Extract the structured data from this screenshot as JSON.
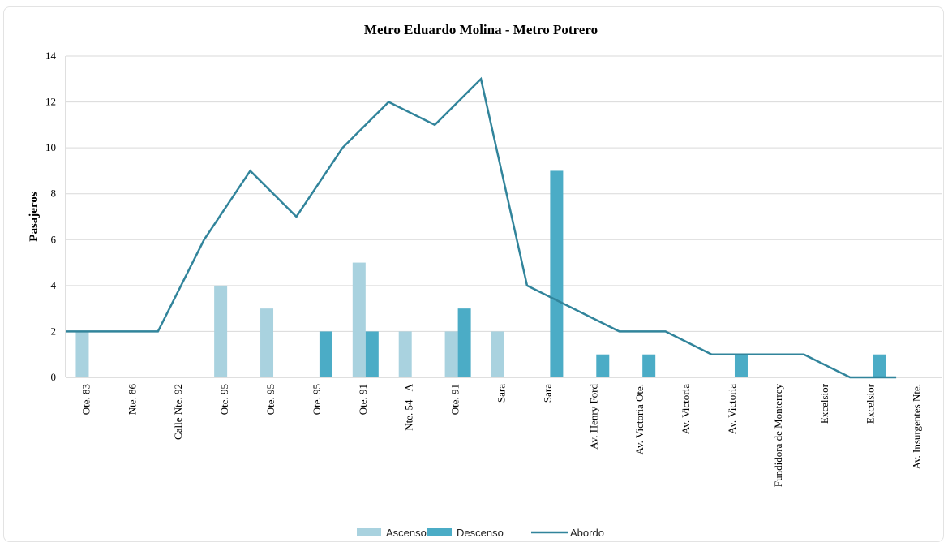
{
  "chart_data": {
    "type": "bar",
    "title": "Metro Eduardo  Molina  - Metro Potrero",
    "ylabel": "Pasajeros",
    "xlabel": "",
    "ylim": [
      0,
      14
    ],
    "yticks": [
      0,
      2,
      4,
      6,
      8,
      10,
      12,
      14
    ],
    "grid": true,
    "legend_position": "bottom",
    "categories": [
      "Ote. 83",
      "Nte. 86",
      "Calle Nte. 92",
      "Ote. 95",
      "Ote. 95",
      "Ote. 95",
      "Ote. 91",
      "Nte. 54 - A",
      "Ote. 91",
      "Sara",
      "Sara",
      "Av. Henry Ford",
      "Av. Victoria Ote.",
      "Av. Victoria",
      "Av. Victoria",
      "Fundidora de Monterrey",
      "Excelsior",
      "Excelsior",
      "Av. Insurgentes Nte."
    ],
    "series": [
      {
        "name": "Ascenso",
        "kind": "bar",
        "color": "#a9d2df",
        "values": [
          2,
          0,
          0,
          4,
          3,
          0,
          5,
          2,
          2,
          2,
          0,
          0,
          0,
          0,
          0,
          0,
          0,
          0,
          0
        ]
      },
      {
        "name": "Descenso",
        "kind": "bar",
        "color": "#4bacc6",
        "values": [
          0,
          0,
          0,
          0,
          0,
          2,
          2,
          0,
          3,
          0,
          9,
          1,
          1,
          0,
          1,
          0,
          0,
          1,
          0
        ]
      },
      {
        "name": "Abordo",
        "kind": "line",
        "color": "#31849b",
        "values": [
          2,
          2,
          2,
          6,
          9,
          7,
          10,
          12,
          11,
          13,
          4,
          3,
          2,
          2,
          1,
          1,
          1,
          0,
          0
        ]
      }
    ]
  }
}
